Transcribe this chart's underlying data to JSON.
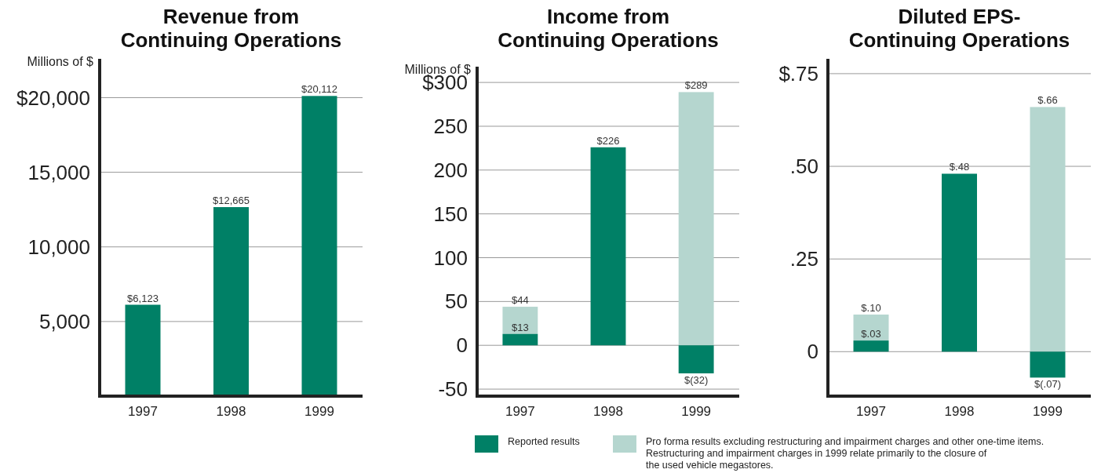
{
  "chart_data": [
    {
      "type": "bar",
      "title": "Revenue from\nContinuing Operations",
      "ylabel": "Millions of $",
      "categories": [
        "1997",
        "1998",
        "1999"
      ],
      "series": [
        {
          "color": "#008066",
          "values": [
            6123,
            12665,
            20112
          ],
          "value_labels": [
            "$6,123",
            "$12,665",
            "$20,112"
          ]
        }
      ],
      "ylim": [
        0,
        22600
      ],
      "yticks": [
        {
          "value": 5000,
          "label": "5,000"
        },
        {
          "value": 10000,
          "label": "10,000"
        },
        {
          "value": 15000,
          "label": "15,000"
        },
        {
          "value": 20000,
          "label": "$20,000"
        }
      ],
      "grid": "y"
    },
    {
      "type": "bar",
      "title": "Income from\nContinuing Operations",
      "ylabel": "Millions of $",
      "categories": [
        "1997",
        "1998",
        "1999"
      ],
      "series": [
        {
          "name": "Reported results",
          "color": "#008066",
          "values": [
            13,
            226,
            -32
          ],
          "value_labels": [
            "$13",
            "$226",
            "$(32)"
          ]
        },
        {
          "name": "Pro forma results excluding restructuring and impairment charges and other one-time items.",
          "color": "#b5d6cf",
          "values": [
            31,
            null,
            289
          ],
          "value_labels": [
            null,
            null,
            "$289"
          ]
        }
      ],
      "stacked": true,
      "totals": [
        "$44",
        null,
        null
      ],
      "ylim": [
        -58,
        318
      ],
      "yticks": [
        -50,
        0,
        50,
        100,
        150,
        200,
        250,
        {
          "value": 300,
          "label": "$300"
        }
      ],
      "grid": "y",
      "legend": "bottom",
      "annotations": [
        "Restructuring and impairment charges in 1999 relate primarily to the closure of the used vehicle megastores."
      ]
    },
    {
      "type": "bar",
      "title": "Diluted EPS-\nContinuing Operations",
      "categories": [
        "1997",
        "1998",
        "1999"
      ],
      "series": [
        {
          "color": "#008066",
          "values": [
            0.03,
            0.48,
            -0.07
          ],
          "value_labels": [
            "$.03",
            "$.48",
            "$(.07)"
          ]
        },
        {
          "color": "#b5d6cf",
          "values": [
            0.07,
            null,
            0.66
          ],
          "value_labels": [
            null,
            null,
            "$.66"
          ]
        }
      ],
      "stacked": true,
      "totals": [
        "$.10",
        null,
        null
      ],
      "ylim": [
        -0.12,
        0.79
      ],
      "yticks": [
        {
          "value": 0,
          "label": "0"
        },
        {
          "value": 0.25,
          "label": ".25"
        },
        {
          "value": 0.5,
          "label": ".50"
        },
        {
          "value": 0.75,
          "label": "$.75"
        }
      ],
      "grid": "y"
    }
  ]
}
